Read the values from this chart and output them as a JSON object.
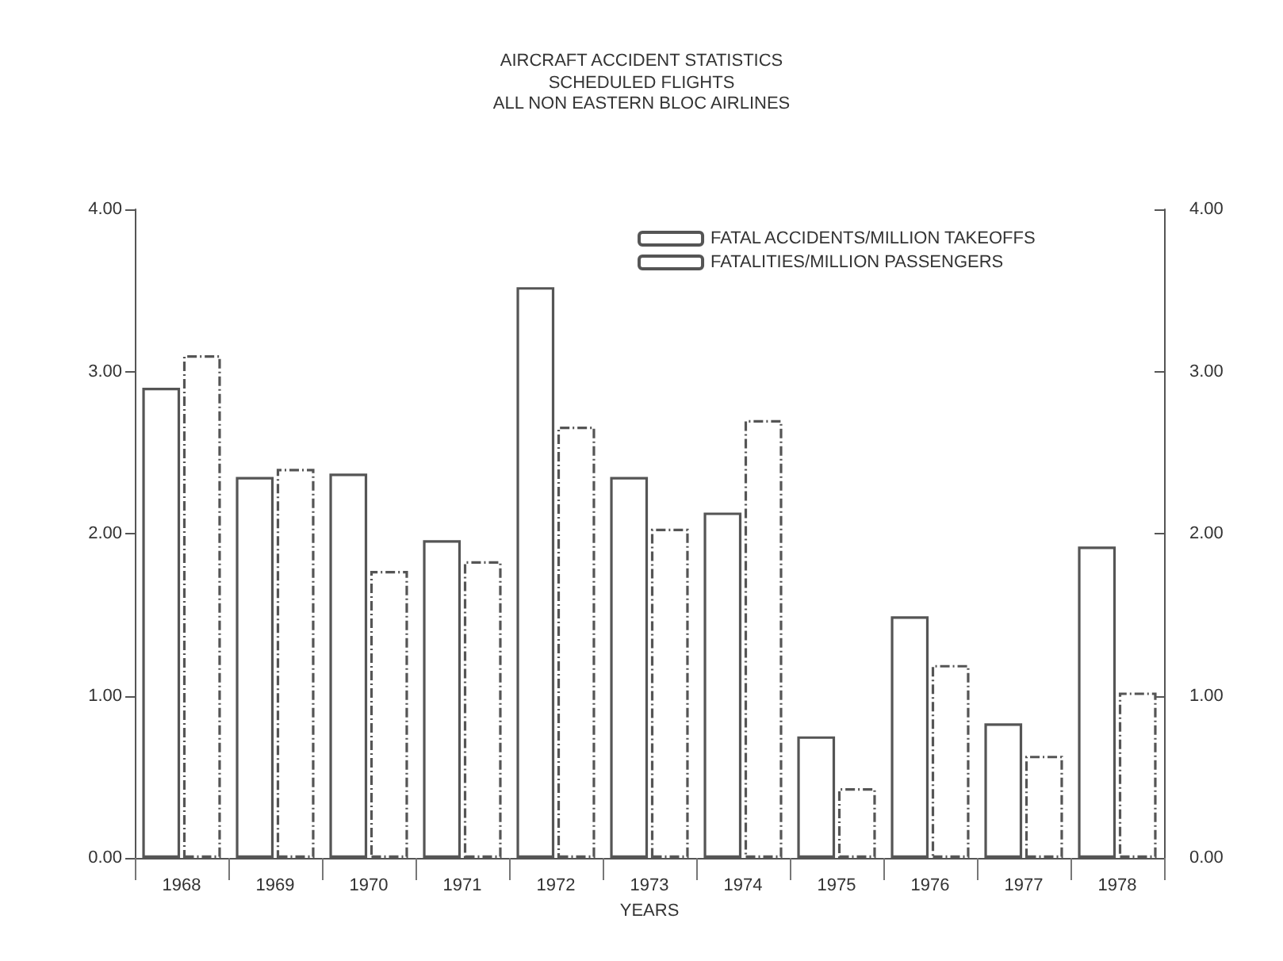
{
  "chart_data": {
    "type": "bar",
    "title": "AIRCRAFT ACCIDENT STATISTICS",
    "subtitle": "SCHEDULED FLIGHTS\nALL NON EASTERN BLOC AIRLINES",
    "xlabel": "YEARS",
    "categories": [
      "1968",
      "1969",
      "1970",
      "1971",
      "1972",
      "1973",
      "1974",
      "1975",
      "1976",
      "1977",
      "1978"
    ],
    "series": [
      {
        "name": "FATAL ACCIDENTS/MILLION TAKEOFFS",
        "color": "#555555",
        "line_style": "solid",
        "values": [
          2.9,
          2.35,
          2.37,
          1.96,
          3.52,
          2.35,
          2.13,
          0.75,
          1.49,
          0.83,
          1.92
        ]
      },
      {
        "name": "FATALITIES/MILLION PASSENGERS",
        "color": "#555555",
        "line_style": "dashed",
        "values": [
          3.1,
          2.4,
          1.77,
          1.83,
          2.66,
          2.03,
          2.7,
          0.43,
          1.19,
          0.63,
          1.02
        ]
      }
    ],
    "ylim": [
      0,
      4
    ],
    "yticks": [
      {
        "value": 0,
        "label": "0.00"
      },
      {
        "value": 1,
        "label": "1.00"
      },
      {
        "value": 2,
        "label": "2.00"
      },
      {
        "value": 3,
        "label": "3.00"
      },
      {
        "value": 4,
        "label": "4.00"
      }
    ],
    "y2lim": [
      0,
      4
    ],
    "y2ticks": [
      {
        "value": 0,
        "label": "0.00"
      },
      {
        "value": 1,
        "label": "1.00"
      },
      {
        "value": 2,
        "label": "2.00"
      },
      {
        "value": 3,
        "label": "3.00"
      },
      {
        "value": 4,
        "label": "4.00"
      }
    ],
    "grid": false,
    "legend": "top right"
  }
}
